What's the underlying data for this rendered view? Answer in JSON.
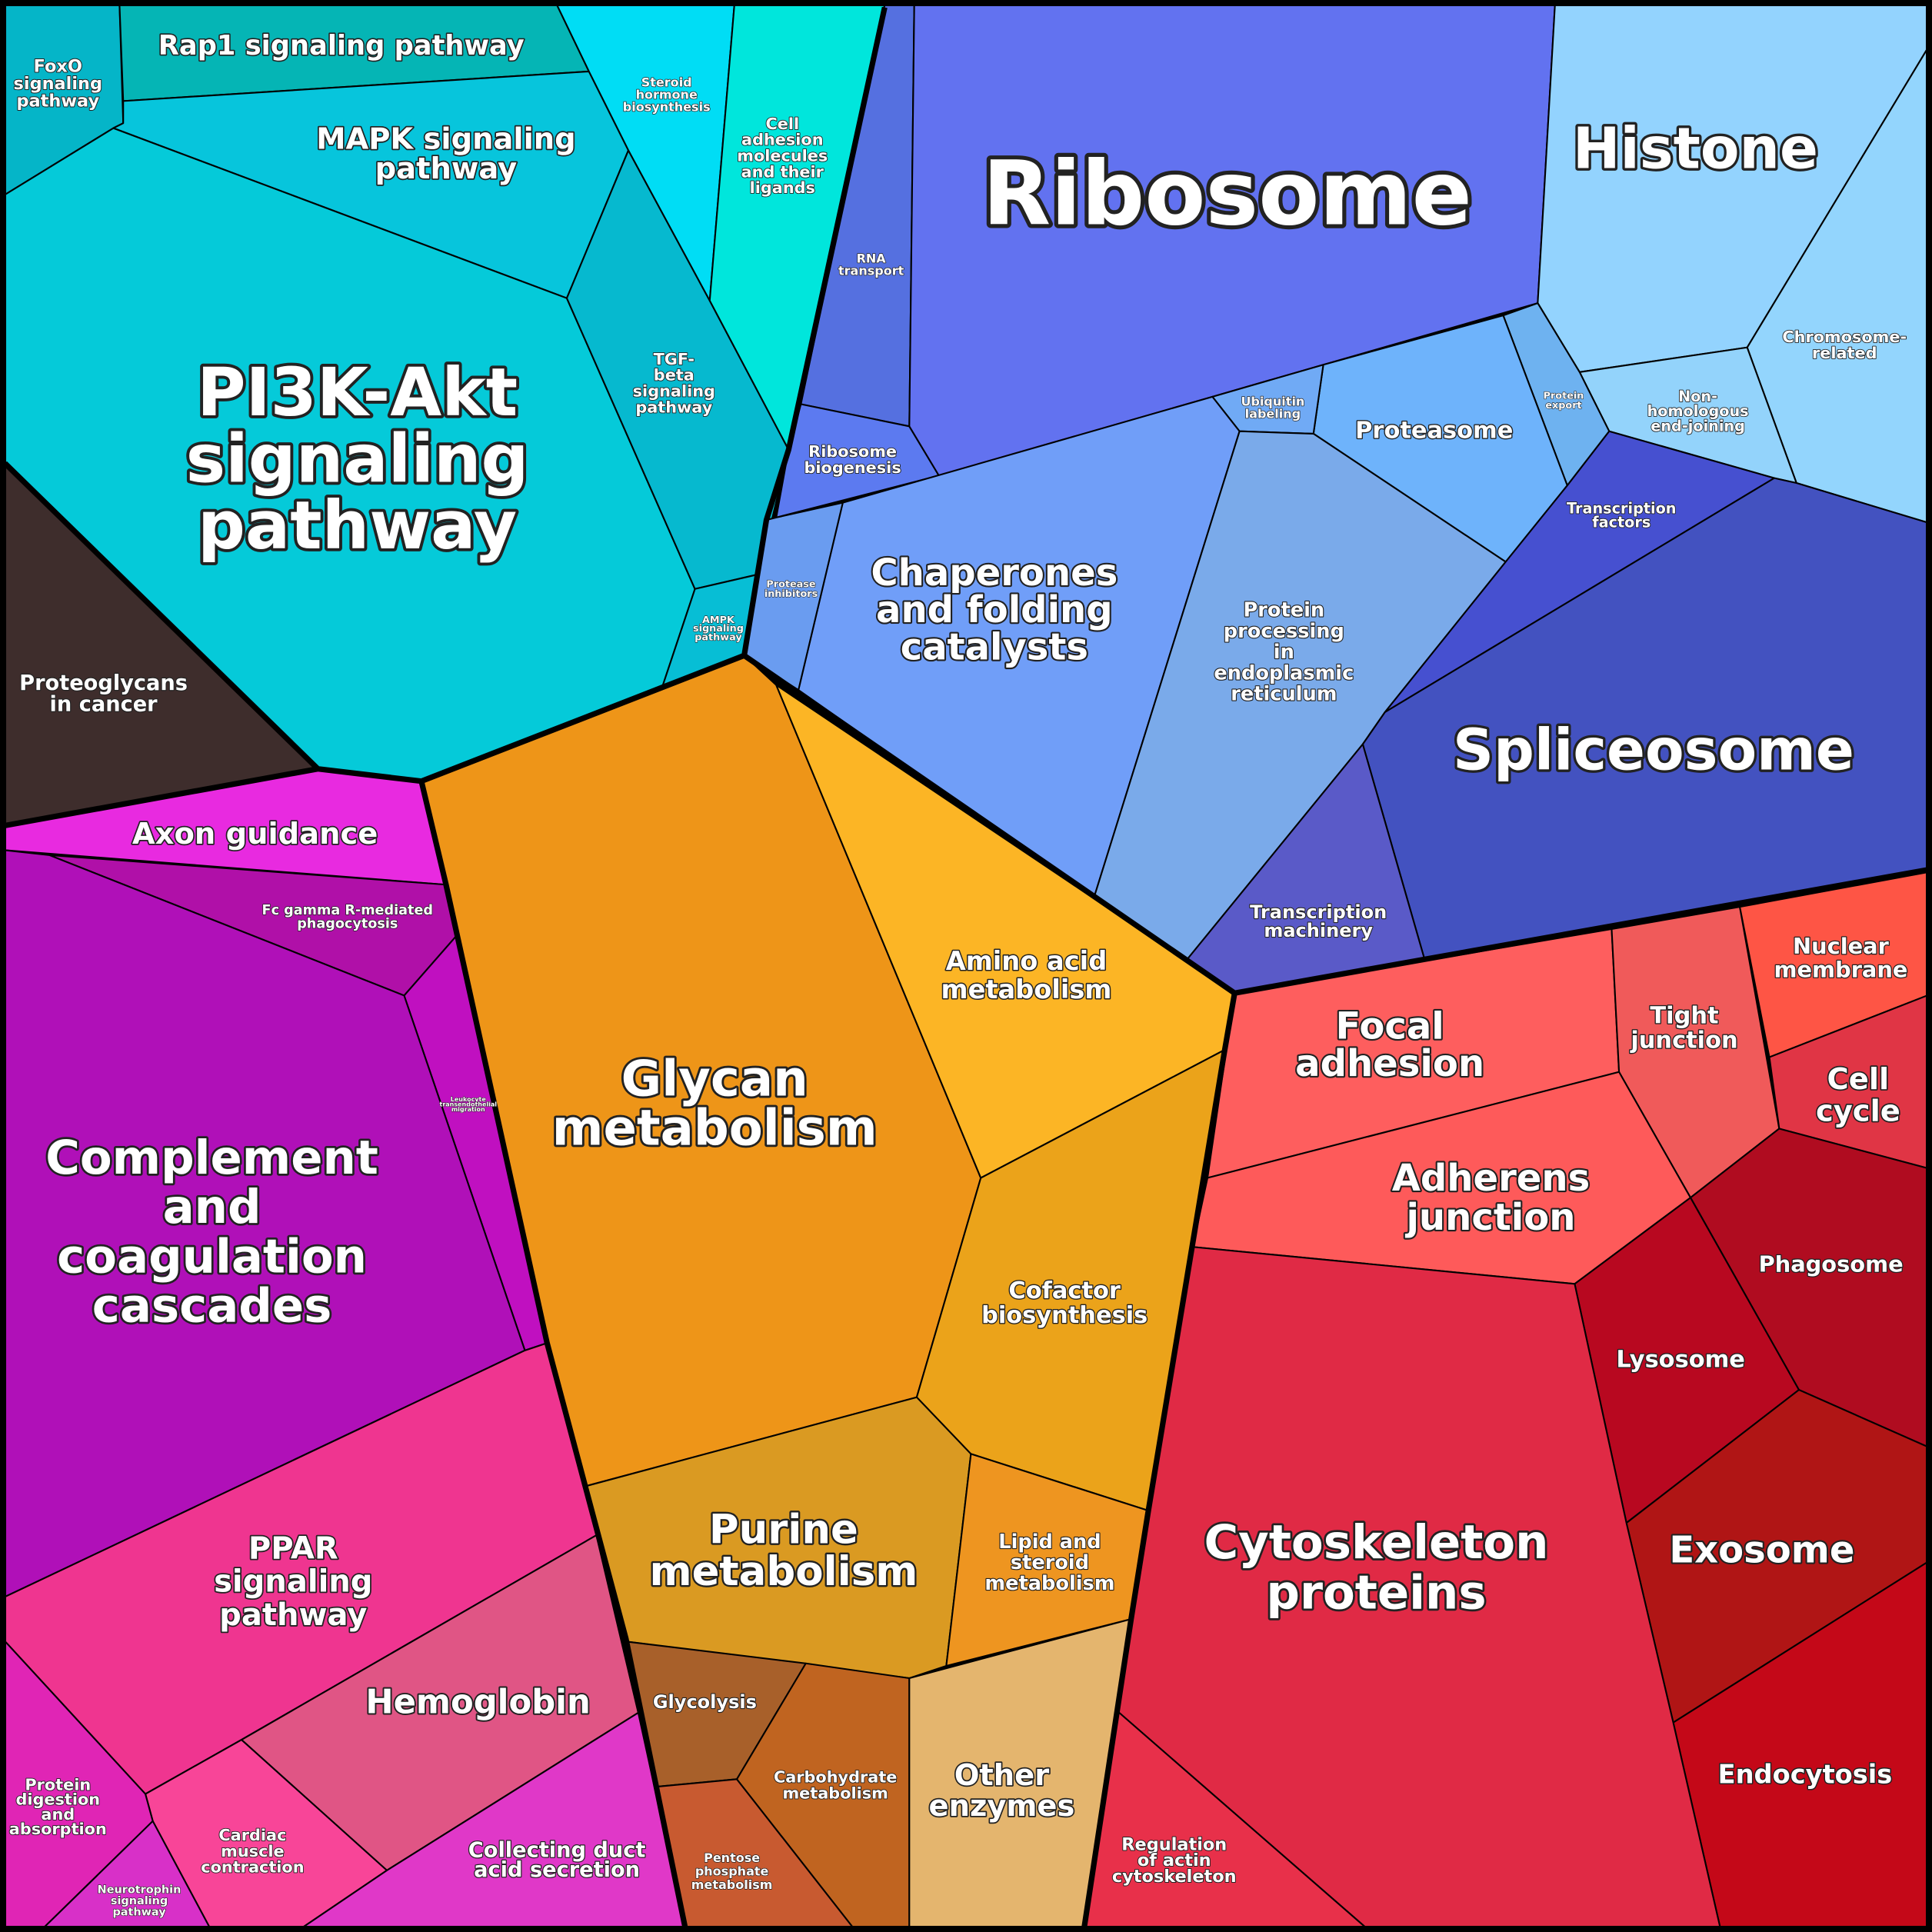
{
  "cells": [
    {
      "lines": [
        "FoxO",
        "signaling",
        "pathway"
      ]
    },
    {
      "lines": [
        "Rap1 signaling pathway"
      ]
    },
    {
      "lines": [
        "MAPK signaling",
        "pathway"
      ]
    },
    {
      "lines": [
        "PI3K-Akt",
        "signaling",
        "pathway"
      ]
    },
    {
      "lines": [
        "TGF-",
        "beta",
        "signaling",
        "pathway"
      ]
    },
    {
      "lines": [
        "Steroid",
        "hormone",
        "biosynthesis"
      ]
    },
    {
      "lines": [
        "Cell",
        "adhesion",
        "molecules",
        "and their",
        "ligands"
      ]
    },
    {
      "lines": [
        "AMPK",
        "signaling",
        "pathway"
      ]
    },
    {
      "lines": [
        "Proteoglycans",
        "in cancer"
      ]
    },
    {
      "lines": [
        "RNA",
        "transport"
      ]
    },
    {
      "lines": [
        "Ribosome",
        "biogenesis"
      ]
    },
    {
      "lines": [
        "Ribosome"
      ]
    },
    {
      "lines": [
        "Histone"
      ]
    },
    {
      "lines": [
        "Chromosome-",
        "related"
      ]
    },
    {
      "lines": [
        "Non-",
        "homologous",
        "end-joining"
      ]
    },
    {
      "lines": [
        "Protein",
        "export"
      ]
    },
    {
      "lines": [
        "Proteasome"
      ]
    },
    {
      "lines": [
        "Ubiquitin",
        "labeling"
      ]
    },
    {
      "lines": [
        "Chaperones",
        "and folding",
        "catalysts"
      ]
    },
    {
      "lines": [
        "Protease",
        "inhibitors"
      ]
    },
    {
      "lines": [
        "Protein",
        "processing",
        "in",
        "endoplasmic",
        "reticulum"
      ]
    },
    {
      "lines": [
        "Transcription",
        "factors"
      ]
    },
    {
      "lines": [
        "Spliceosome"
      ]
    },
    {
      "lines": [
        "Transcription",
        "machinery"
      ]
    },
    {
      "lines": [
        "Glycan",
        "metabolism"
      ]
    },
    {
      "lines": [
        "Amino acid",
        "metabolism"
      ]
    },
    {
      "lines": [
        "Cofactor",
        "biosynthesis"
      ]
    },
    {
      "lines": [
        "Purine",
        "metabolism"
      ]
    },
    {
      "lines": [
        "Lipid and",
        "steroid",
        "metabolism"
      ]
    },
    {
      "lines": [
        "Glycolysis"
      ]
    },
    {
      "lines": [
        "Carbohydrate",
        "metabolism"
      ]
    },
    {
      "lines": [
        "Pentose",
        "phosphate",
        "metabolism"
      ]
    },
    {
      "lines": [
        "Other",
        "enzymes"
      ]
    },
    {
      "lines": [
        "Focal",
        "adhesion"
      ]
    },
    {
      "lines": [
        "Tight",
        "junction"
      ]
    },
    {
      "lines": [
        "Nuclear",
        "membrane"
      ]
    },
    {
      "lines": [
        "Cell",
        "cycle"
      ]
    },
    {
      "lines": [
        "Adherens",
        "junction"
      ]
    },
    {
      "lines": [
        "Phagosome"
      ]
    },
    {
      "lines": [
        "Lysosome"
      ]
    },
    {
      "lines": [
        "Exosome"
      ]
    },
    {
      "lines": [
        "Endocytosis"
      ]
    },
    {
      "lines": [
        "Cytoskeleton",
        "proteins"
      ]
    },
    {
      "lines": [
        "Regulation",
        "of actin",
        "cytoskeleton"
      ]
    },
    {
      "lines": [
        "Axon guidance"
      ]
    },
    {
      "lines": [
        "Fc gamma R-mediated",
        "phagocytosis"
      ]
    },
    {
      "lines": [
        "Leukocyte",
        "transendothelial",
        "migration"
      ]
    },
    {
      "lines": [
        "Complement",
        "and",
        "coagulation",
        "cascades"
      ]
    },
    {
      "lines": [
        "PPAR",
        "signaling",
        "pathway"
      ]
    },
    {
      "lines": [
        "Hemoglobin"
      ]
    },
    {
      "lines": [
        "Cardiac",
        "muscle",
        "contraction"
      ]
    },
    {
      "lines": [
        "Collecting duct",
        "acid secretion"
      ]
    },
    {
      "lines": [
        "Protein",
        "digestion",
        "and",
        "absorption"
      ]
    },
    {
      "lines": [
        "Neurotrophin",
        "signaling",
        "pathway"
      ]
    }
  ]
}
